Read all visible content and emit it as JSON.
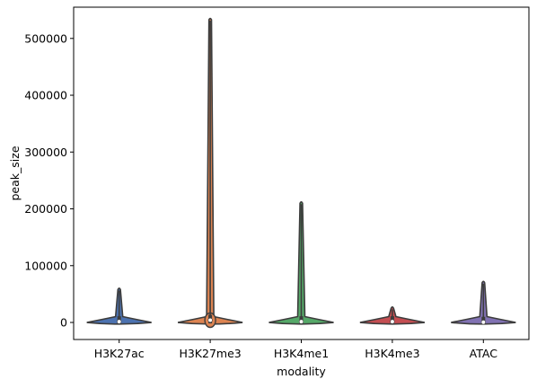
{
  "chart_data": {
    "type": "violin",
    "xlabel": "modality",
    "ylabel": "peak_size",
    "ylim": [
      -30000,
      555000
    ],
    "yticks": [
      0,
      100000,
      200000,
      300000,
      400000,
      500000
    ],
    "ytick_labels": [
      "0",
      "100000",
      "200000",
      "300000",
      "400000",
      "500000"
    ],
    "grid": false,
    "categories": [
      "H3K27ac",
      "H3K27me3",
      "H3K4me1",
      "H3K4me3",
      "ATAC"
    ],
    "series": [
      {
        "category": "H3K27ac",
        "color": "#4c72b0",
        "min": 0,
        "max": 61000,
        "median": 1500
      },
      {
        "category": "H3K27me3",
        "color": "#dd8452",
        "min": 0,
        "max": 536000,
        "median": 4000
      },
      {
        "category": "H3K4me1",
        "color": "#55a868",
        "min": 0,
        "max": 213000,
        "median": 1500
      },
      {
        "category": "H3K4me3",
        "color": "#c44e52",
        "min": 0,
        "max": 28000,
        "median": 1500
      },
      {
        "category": "ATAC",
        "color": "#8172b3",
        "min": 0,
        "max": 73000,
        "median": 500
      }
    ]
  }
}
